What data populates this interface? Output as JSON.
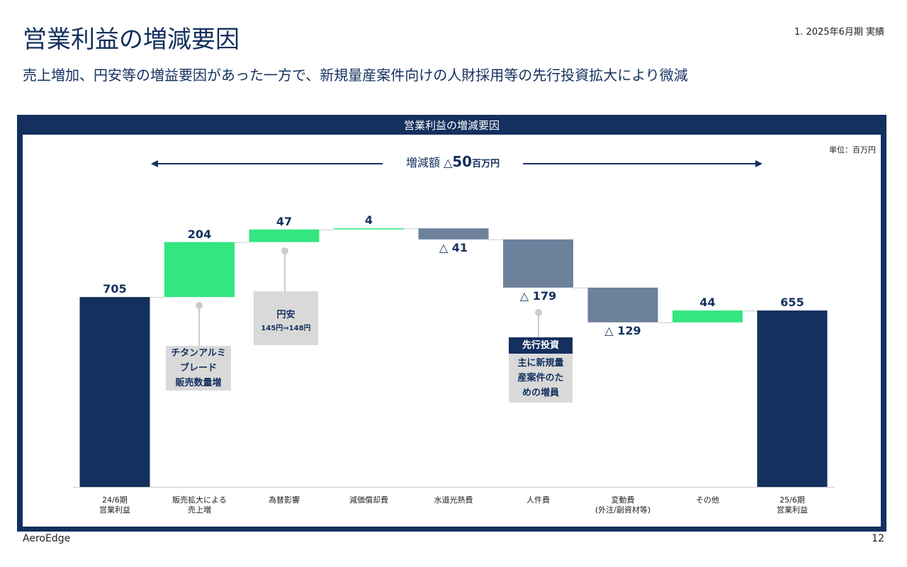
{
  "header": {
    "title": "営業利益の増減要因",
    "subtitle": "売上増加、円安等の増益要因があった一方で、新規量産案件向けの人財採用等の先行投資拡大により微減",
    "period": "1. 2025年6月期 実績"
  },
  "footer": {
    "company": "AeroEdge",
    "page": "12"
  },
  "chart_data": {
    "type": "waterfall",
    "title": "営業利益の増減要因",
    "unit": "単位：百万円",
    "change": {
      "prefix": "増減額 △",
      "value": "50",
      "unit": "百万円"
    },
    "categories": [
      "24/6期\n営業利益",
      "販売拡大による\n売上増",
      "為替影響",
      "減価償却費",
      "水道光熱費",
      "人件費",
      "変動費\n(外注/副資材等)",
      "その他",
      "25/6期\n営業利益"
    ],
    "values": [
      705,
      204,
      47,
      4,
      -41,
      -179,
      -129,
      44,
      655
    ],
    "value_labels": [
      "705",
      "204",
      "47",
      "4",
      "△ 41",
      "△ 179",
      "△ 129",
      "44",
      "655"
    ],
    "colors": {
      "total": "#13305e",
      "increase": "#33e67f",
      "decrease": "#6e819c"
    },
    "callouts": [
      {
        "text": "チタンアルミ\nブレード\n販売数量増"
      },
      {
        "title": "円安",
        "text": "145円⇒148円"
      },
      {
        "title": "先行投資",
        "text": "主に新規量\n産案件のた\nめの増員"
      }
    ]
  }
}
